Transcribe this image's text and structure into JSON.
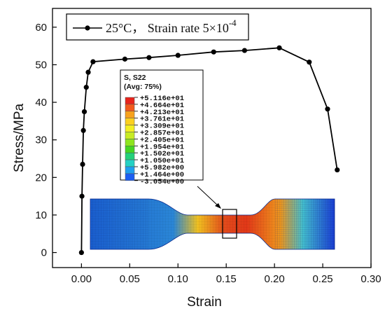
{
  "chart_data": {
    "type": "line",
    "xlabel": "Strain",
    "ylabel": "Stress/MPa",
    "xlim": [
      -0.03,
      0.3
    ],
    "ylim": [
      -4,
      65
    ],
    "xticks": [
      "0.00",
      "0.05",
      "0.10",
      "0.15",
      "0.20",
      "0.25",
      "0.30"
    ],
    "yticks": [
      "0",
      "10",
      "20",
      "30",
      "40",
      "50",
      "60"
    ],
    "grid": false,
    "legend_position": "top-left",
    "series": [
      {
        "name": "25°C， Strain rate 5×10",
        "name_sup": "-4",
        "color": "#000000",
        "marker": "circle",
        "x": [
          0.0,
          0.0005,
          0.0012,
          0.002,
          0.003,
          0.005,
          0.007,
          0.012,
          0.045,
          0.07,
          0.1,
          0.137,
          0.169,
          0.205,
          0.236,
          0.255,
          0.265
        ],
        "y": [
          0.0,
          15.0,
          23.5,
          32.5,
          37.5,
          44.0,
          48.0,
          50.8,
          51.5,
          51.9,
          52.5,
          53.4,
          53.8,
          54.5,
          50.7,
          38.2,
          22.0
        ]
      }
    ],
    "inset": {
      "title_line1": "S, S22",
      "title_line2": "(Avg: 75%)",
      "colorbar_labels": [
        "+5.116e+01",
        "+4.664e+01",
        "+4.213e+01",
        "+3.761e+01",
        "+3.309e+01",
        "+2.857e+01",
        "+2.405e+01",
        "+1.954e+01",
        "+1.502e+01",
        "+1.050e+01",
        "+5.982e+00",
        "+1.464e+00",
        "-3.054e+00"
      ],
      "colorbar_colors": [
        "#e8231b",
        "#f25a1c",
        "#f7a21d",
        "#fbd01f",
        "#f3ef22",
        "#c8ec24",
        "#8ee51f",
        "#45d622",
        "#23d17a",
        "#24d1c4",
        "#1f9ff0",
        "#1c5ef2",
        "#1a23d6"
      ]
    }
  }
}
